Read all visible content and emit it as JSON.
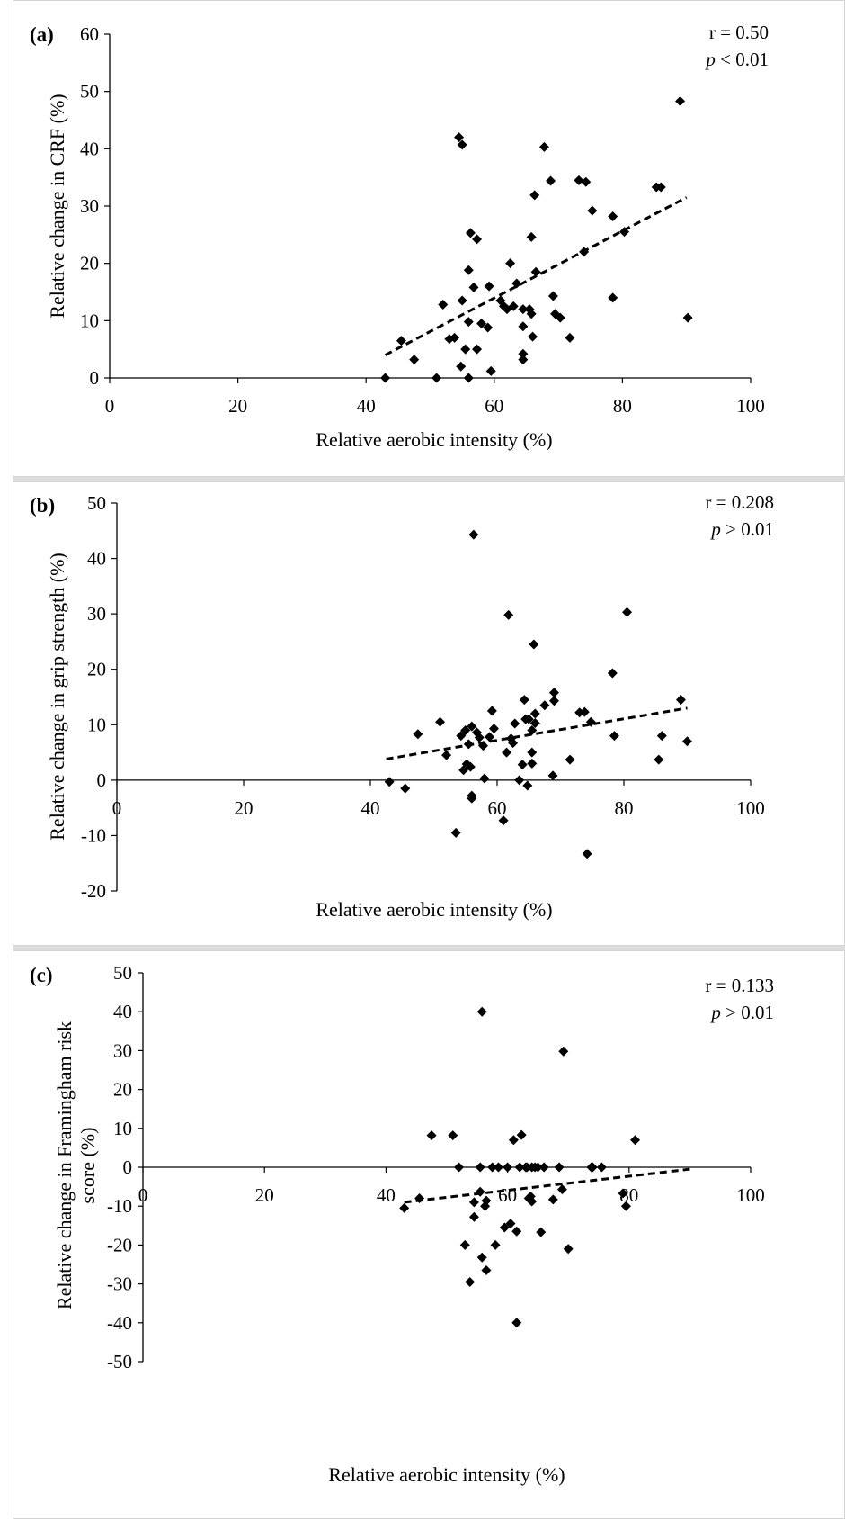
{
  "chart_data": [
    {
      "type": "scatter",
      "panel_label": "(a)",
      "xlabel": "Relative aerobic intensity (%)",
      "ylabel": "Relative change in CRF (%)",
      "xlim": [
        0,
        100
      ],
      "ylim": [
        0,
        60
      ],
      "xticks": [
        0,
        20,
        40,
        60,
        80,
        100
      ],
      "yticks": [
        0,
        10,
        20,
        30,
        40,
        50,
        60
      ],
      "stat_r": "r = 0.50",
      "stat_p_symbol": "p",
      "stat_p_rest": " < 0.01",
      "trendline": [
        [
          43,
          4
        ],
        [
          90,
          31.5
        ]
      ],
      "points": [
        [
          43,
          0
        ],
        [
          45.5,
          6.5
        ],
        [
          47.5,
          3.2
        ],
        [
          51,
          0
        ],
        [
          52,
          12.8
        ],
        [
          53,
          6.8
        ],
        [
          53.8,
          7
        ],
        [
          54.5,
          42
        ],
        [
          55,
          40.7
        ],
        [
          55,
          13.5
        ],
        [
          54.8,
          2
        ],
        [
          55.5,
          5
        ],
        [
          56,
          0
        ],
        [
          56,
          18.8
        ],
        [
          56,
          9.8
        ],
        [
          56.3,
          25.3
        ],
        [
          56.8,
          15.8
        ],
        [
          57.3,
          24.2
        ],
        [
          57.3,
          5
        ],
        [
          58,
          9.5
        ],
        [
          59,
          8.8
        ],
        [
          59.2,
          16
        ],
        [
          59.5,
          1.2
        ],
        [
          61,
          13.5
        ],
        [
          61.5,
          12.5
        ],
        [
          62,
          12
        ],
        [
          62.5,
          20
        ],
        [
          63,
          12.5
        ],
        [
          63.5,
          16.5
        ],
        [
          64.5,
          12
        ],
        [
          64.5,
          9
        ],
        [
          64.5,
          4.2
        ],
        [
          64.5,
          3.2
        ],
        [
          65.5,
          12
        ],
        [
          65.8,
          11.2
        ],
        [
          65.8,
          24.6
        ],
        [
          66,
          7.2
        ],
        [
          66.3,
          31.9
        ],
        [
          66.5,
          18.5
        ],
        [
          67.8,
          40.3
        ],
        [
          68.8,
          34.4
        ],
        [
          69.2,
          14.3
        ],
        [
          69.5,
          11.2
        ],
        [
          70.3,
          10.5
        ],
        [
          71.8,
          7
        ],
        [
          73.2,
          34.5
        ],
        [
          74,
          22
        ],
        [
          74.3,
          34.2
        ],
        [
          75.3,
          29.2
        ],
        [
          78.5,
          28.2
        ],
        [
          78.5,
          14
        ],
        [
          80.3,
          25.5
        ],
        [
          85.3,
          33.3
        ],
        [
          86,
          33.3
        ],
        [
          89,
          48.3
        ],
        [
          90.2,
          10.5
        ]
      ]
    },
    {
      "type": "scatter",
      "panel_label": "(b)",
      "xlabel": "Relative aerobic intensity (%)",
      "ylabel": "Relative change in grip strength (%)",
      "xlim": [
        0,
        100
      ],
      "ylim": [
        -20,
        50
      ],
      "xticks": [
        0,
        20,
        40,
        60,
        80,
        100
      ],
      "yticks": [
        -20,
        -10,
        0,
        10,
        20,
        30,
        40,
        50
      ],
      "stat_r": "r = 0.208",
      "stat_p_symbol": "p",
      "stat_p_rest": " > 0.01",
      "trendline": [
        [
          42.5,
          3.8
        ],
        [
          90,
          13
        ]
      ],
      "points": [
        [
          43,
          -0.3
        ],
        [
          45.5,
          -1.5
        ],
        [
          47.5,
          8.3
        ],
        [
          51,
          10.5
        ],
        [
          52,
          4.5
        ],
        [
          53.5,
          -9.5
        ],
        [
          54.3,
          8
        ],
        [
          54.7,
          1.8
        ],
        [
          55,
          9
        ],
        [
          55.2,
          2.9
        ],
        [
          55.5,
          6.5
        ],
        [
          55.8,
          2.4
        ],
        [
          56,
          9.7
        ],
        [
          56,
          -2.8
        ],
        [
          56,
          -3.3
        ],
        [
          56.3,
          44.3
        ],
        [
          56.8,
          8.6
        ],
        [
          57.2,
          7.7
        ],
        [
          57.8,
          6.2
        ],
        [
          58,
          0.3
        ],
        [
          58.8,
          7.8
        ],
        [
          59.2,
          12.5
        ],
        [
          59.5,
          9.3
        ],
        [
          61,
          -7.3
        ],
        [
          61.5,
          5
        ],
        [
          61.8,
          29.8
        ],
        [
          62.2,
          7.5
        ],
        [
          62.5,
          6.7
        ],
        [
          62.8,
          10.2
        ],
        [
          63.5,
          0
        ],
        [
          64,
          2.8
        ],
        [
          64.3,
          14.5
        ],
        [
          64.5,
          11
        ],
        [
          64.8,
          -1
        ],
        [
          65,
          11
        ],
        [
          65.5,
          9
        ],
        [
          65.5,
          5
        ],
        [
          65.5,
          3
        ],
        [
          65.8,
          24.5
        ],
        [
          66,
          12
        ],
        [
          66,
          10.3
        ],
        [
          67.5,
          13.5
        ],
        [
          68.8,
          0.8
        ],
        [
          69,
          15.8
        ],
        [
          69,
          14.3
        ],
        [
          71.5,
          3.7
        ],
        [
          73,
          12.2
        ],
        [
          73.8,
          12.3
        ],
        [
          74.2,
          -13.3
        ],
        [
          74.8,
          10.5
        ],
        [
          78.2,
          19.3
        ],
        [
          78.5,
          8
        ],
        [
          80.5,
          30.3
        ],
        [
          85.5,
          3.7
        ],
        [
          86,
          8
        ],
        [
          89,
          14.5
        ],
        [
          90,
          7
        ]
      ]
    },
    {
      "type": "scatter",
      "panel_label": "(c)",
      "xlabel": "Relative aerobic intensity (%)",
      "ylabel": "Relative change in Framingham risk score (%)",
      "ylabel_line1": "Relative change in Framingham risk",
      "ylabel_line2": "score (%)",
      "xlim": [
        0,
        100
      ],
      "ylim": [
        -50,
        50
      ],
      "xticks": [
        0,
        20,
        40,
        60,
        80,
        100
      ],
      "yticks": [
        -50,
        -40,
        -30,
        -20,
        -10,
        0,
        10,
        20,
        30,
        40,
        50
      ],
      "stat_r": "r = 0.133",
      "stat_p_symbol": "p",
      "stat_p_rest": " > 0.01",
      "trendline": [
        [
          43,
          -9
        ],
        [
          90,
          -0.5
        ]
      ],
      "points": [
        [
          43,
          -10.5
        ],
        [
          45.5,
          -8
        ],
        [
          47.5,
          8.2
        ],
        [
          51,
          8.2
        ],
        [
          52,
          0
        ],
        [
          53,
          -20
        ],
        [
          53.8,
          -29.5
        ],
        [
          54.5,
          -12.8
        ],
        [
          54.5,
          -9
        ],
        [
          55.5,
          -6.3
        ],
        [
          55.8,
          40
        ],
        [
          55.8,
          -23.2
        ],
        [
          55.5,
          0
        ],
        [
          56.3,
          -10
        ],
        [
          56.5,
          -8.6
        ],
        [
          56.5,
          -26.5
        ],
        [
          57.5,
          0
        ],
        [
          58,
          -20
        ],
        [
          58.5,
          0
        ],
        [
          59.5,
          -15.5
        ],
        [
          60,
          0
        ],
        [
          60.5,
          -14.5
        ],
        [
          61,
          7
        ],
        [
          61.5,
          -16.5
        ],
        [
          61.5,
          -40
        ],
        [
          62,
          0
        ],
        [
          62.3,
          8.3
        ],
        [
          63,
          0
        ],
        [
          63.2,
          0
        ],
        [
          63.5,
          -8
        ],
        [
          63.8,
          -7.5
        ],
        [
          64,
          -8.8
        ],
        [
          64,
          0
        ],
        [
          64.5,
          0
        ],
        [
          65,
          0
        ],
        [
          65.5,
          -16.7
        ],
        [
          66,
          0
        ],
        [
          67.5,
          -8.3
        ],
        [
          68.5,
          0
        ],
        [
          69,
          -5.7
        ],
        [
          69.2,
          29.8
        ],
        [
          70,
          -21
        ],
        [
          73.8,
          0
        ],
        [
          74,
          0
        ],
        [
          75.5,
          0
        ],
        [
          79,
          -6.7
        ],
        [
          79.5,
          -10
        ],
        [
          81,
          7
        ]
      ]
    }
  ]
}
